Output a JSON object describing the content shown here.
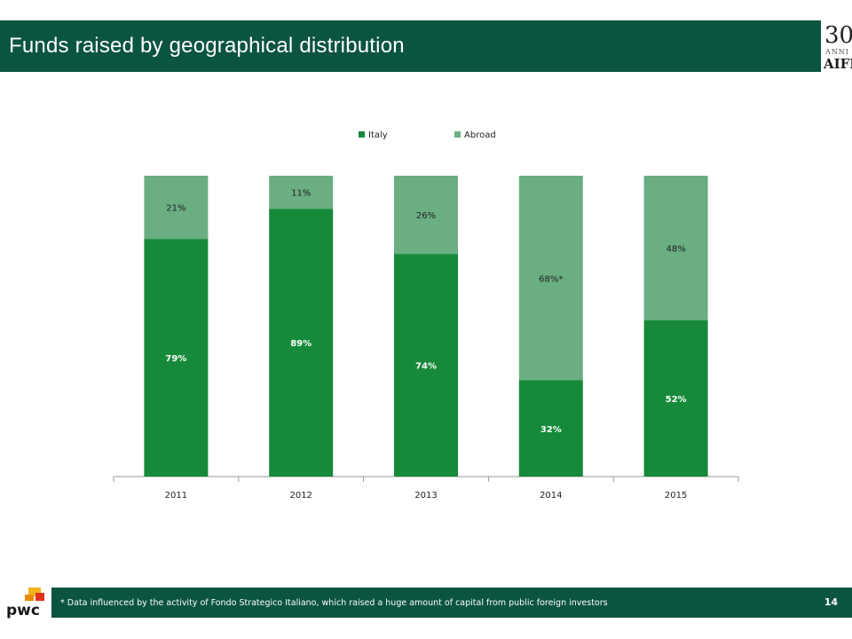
{
  "header": {
    "title": "Funds raised by geographical distribution",
    "logo_number": "30",
    "logo_anni": "ANNI",
    "logo_text": "AIFI"
  },
  "footer": {
    "footnote": "* Data influenced by the activity of Fondo Strategico Italiano, which raised a huge amount of capital from public foreign investors",
    "page_number": "14",
    "pwc_text": "pwc"
  },
  "colors": {
    "header_bg": "#0b5440",
    "italy": "#168a3a",
    "abroad": "#6aae82"
  },
  "chart_data": {
    "type": "bar",
    "stacked": true,
    "percent": true,
    "categories": [
      "2011",
      "2012",
      "2013",
      "2014",
      "2015"
    ],
    "series": [
      {
        "name": "Italy",
        "values": [
          79,
          89,
          74,
          32,
          52
        ],
        "labels": [
          "79%",
          "89%",
          "74%",
          "32%",
          "52%"
        ]
      },
      {
        "name": "Abroad",
        "values": [
          21,
          11,
          26,
          68,
          48
        ],
        "labels": [
          "21%",
          "11%",
          "26%",
          "68%*",
          "48%"
        ]
      }
    ],
    "ylim": [
      0,
      100
    ],
    "legend": "top",
    "grid": false
  }
}
